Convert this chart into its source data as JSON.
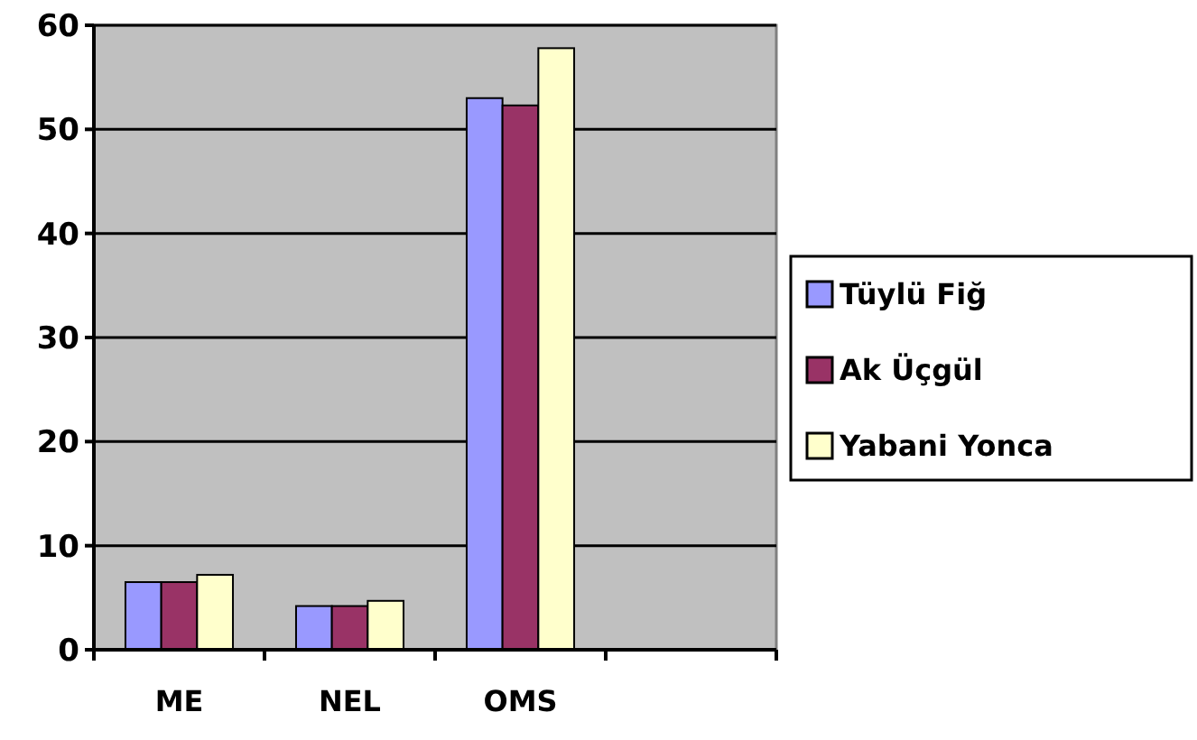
{
  "chart_data": {
    "type": "bar",
    "categories": [
      "ME",
      "NEL",
      "OMS",
      null
    ],
    "series": [
      {
        "name": "Tüylü Fiğ",
        "color": "#9999ff",
        "values": [
          6.5,
          4.2,
          53,
          null
        ]
      },
      {
        "name": "Ak Üçgül",
        "color": "#993366",
        "values": [
          6.5,
          4.2,
          52.3,
          null
        ]
      },
      {
        "name": "Yabani Yonca",
        "color": "#ffffcc",
        "values": [
          7.2,
          4.7,
          57.8,
          null
        ]
      }
    ],
    "ylim": [
      0,
      60
    ],
    "yticks": [
      0,
      10,
      20,
      30,
      40,
      50,
      60
    ],
    "grid": "y",
    "legend": "right"
  }
}
